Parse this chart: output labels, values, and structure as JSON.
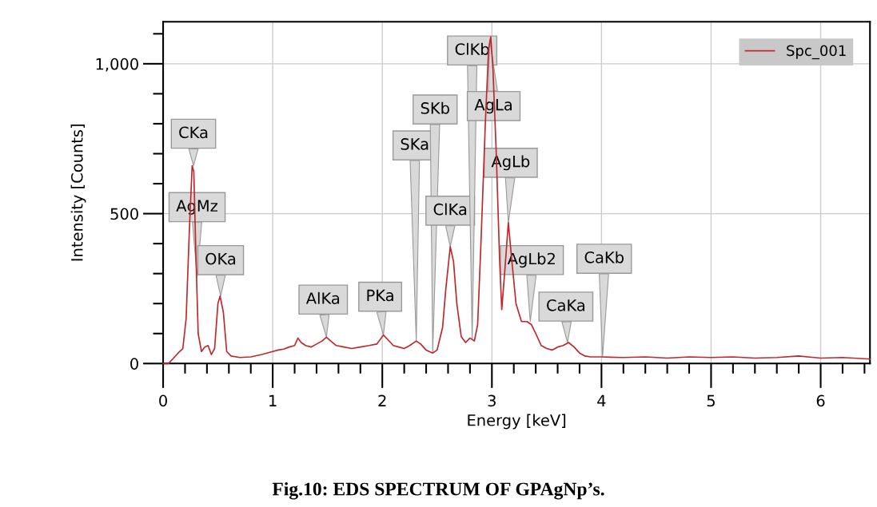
{
  "chart_data": {
    "type": "line",
    "title": "Fig.10: EDS SPECTRUM OF GPAgNp’s.",
    "xlabel": "Energy [keV]",
    "ylabel": "Intensity [Counts]",
    "xlim": [
      0,
      6.45
    ],
    "ylim": [
      0,
      1140
    ],
    "xticks": [
      0,
      1,
      2,
      3,
      4,
      5,
      6,
      {
        "value": 0.2,
        "label": null
      },
      {
        "value": 0.4,
        "label": null
      },
      {
        "value": 0.6,
        "label": null
      },
      {
        "value": 0.8,
        "label": null
      },
      {
        "value": 1.2,
        "label": null
      },
      {
        "value": 1.4,
        "label": null
      },
      {
        "value": 1.6,
        "label": null
      },
      {
        "value": 1.8,
        "label": null
      },
      {
        "value": 2.2,
        "label": null
      },
      {
        "value": 2.4,
        "label": null
      },
      {
        "value": 2.6,
        "label": null
      },
      {
        "value": 2.8,
        "label": null
      },
      {
        "value": 3.2,
        "label": null
      },
      {
        "value": 3.4,
        "label": null
      },
      {
        "value": 3.6,
        "label": null
      },
      {
        "value": 3.8,
        "label": null
      },
      {
        "value": 4.2,
        "label": null
      },
      {
        "value": 4.4,
        "label": null
      },
      {
        "value": 4.6,
        "label": null
      },
      {
        "value": 4.8,
        "label": null
      },
      {
        "value": 5.2,
        "label": null
      },
      {
        "value": 5.4,
        "label": null
      },
      {
        "value": 5.6,
        "label": null
      },
      {
        "value": 5.8,
        "label": null
      },
      {
        "value": 6.2,
        "label": null
      },
      {
        "value": 6.4,
        "label": null
      }
    ],
    "yticks": [
      0,
      500,
      {
        "value": 1000,
        "label": "1,000"
      },
      {
        "value": 100,
        "label": null
      },
      {
        "value": 200,
        "label": null
      },
      {
        "value": 300,
        "label": null
      },
      {
        "value": 400,
        "label": null
      },
      {
        "value": 600,
        "label": null
      },
      {
        "value": 700,
        "label": null
      },
      {
        "value": 800,
        "label": null
      },
      {
        "value": 900,
        "label": null
      },
      {
        "value": 1100,
        "label": null
      }
    ],
    "grid": true,
    "legend": "top right",
    "marker": "none",
    "line_style": "solid",
    "series": [
      {
        "name": "Spc_001",
        "color": "#c0272d",
        "x": [
          0.0,
          0.05,
          0.1,
          0.15,
          0.18,
          0.21,
          0.24,
          0.265,
          0.28,
          0.3,
          0.32,
          0.35,
          0.38,
          0.41,
          0.44,
          0.47,
          0.5,
          0.52,
          0.55,
          0.58,
          0.62,
          0.7,
          0.8,
          0.9,
          1.0,
          1.05,
          1.1,
          1.15,
          1.2,
          1.23,
          1.26,
          1.3,
          1.35,
          1.4,
          1.45,
          1.49,
          1.53,
          1.58,
          1.65,
          1.72,
          1.8,
          1.88,
          1.95,
          2.01,
          2.05,
          2.1,
          2.15,
          2.2,
          2.25,
          2.31,
          2.35,
          2.4,
          2.46,
          2.5,
          2.55,
          2.58,
          2.62,
          2.65,
          2.68,
          2.72,
          2.76,
          2.8,
          2.84,
          2.87,
          2.9,
          2.94,
          2.97,
          2.99,
          3.01,
          3.04,
          3.07,
          3.09,
          3.12,
          3.15,
          3.18,
          3.22,
          3.27,
          3.32,
          3.36,
          3.4,
          3.45,
          3.5,
          3.55,
          3.6,
          3.65,
          3.7,
          3.75,
          3.8,
          3.85,
          3.9,
          4.0,
          4.2,
          4.4,
          4.6,
          4.8,
          5.0,
          5.2,
          5.4,
          5.6,
          5.8,
          6.0,
          6.2,
          6.45
        ],
        "values": [
          0,
          0,
          20,
          40,
          50,
          150,
          450,
          660,
          640,
          350,
          100,
          40,
          55,
          60,
          30,
          50,
          200,
          225,
          170,
          40,
          25,
          20,
          22,
          30,
          40,
          45,
          48,
          55,
          60,
          85,
          70,
          60,
          55,
          65,
          75,
          88,
          75,
          60,
          55,
          50,
          55,
          60,
          65,
          95,
          80,
          60,
          55,
          50,
          60,
          75,
          65,
          45,
          35,
          45,
          120,
          250,
          390,
          340,
          200,
          90,
          70,
          85,
          75,
          130,
          400,
          800,
          1050,
          1090,
          980,
          700,
          350,
          180,
          320,
          470,
          350,
          200,
          140,
          140,
          130,
          100,
          60,
          50,
          45,
          55,
          60,
          70,
          55,
          35,
          25,
          22,
          22,
          20,
          22,
          18,
          22,
          20,
          22,
          18,
          20,
          25,
          18,
          20,
          15
        ]
      }
    ],
    "annotations": [
      {
        "text": "CKa",
        "x": 0.277,
        "y": 660
      },
      {
        "text": "AgMz",
        "x": 0.31,
        "y": 290
      },
      {
        "text": "OKa",
        "x": 0.525,
        "y": 225
      },
      {
        "text": "AlKa",
        "x": 1.49,
        "y": 88
      },
      {
        "text": "PKa",
        "x": 2.01,
        "y": 95
      },
      {
        "text": "SKa",
        "x": 2.31,
        "y": 75
      },
      {
        "text": "SKb",
        "x": 2.46,
        "y": 35
      },
      {
        "text": "ClKa",
        "x": 2.62,
        "y": 390
      },
      {
        "text": "ClKb",
        "x": 2.82,
        "y": 80
      },
      {
        "text": "AgLa",
        "x": 2.98,
        "y": 1080
      },
      {
        "text": "AgLb",
        "x": 3.15,
        "y": 470
      },
      {
        "text": "AgLb2",
        "x": 3.35,
        "y": 140
      },
      {
        "text": "CaKa",
        "x": 3.69,
        "y": 70
      },
      {
        "text": "CaKb",
        "x": 4.01,
        "y": 22
      }
    ]
  }
}
